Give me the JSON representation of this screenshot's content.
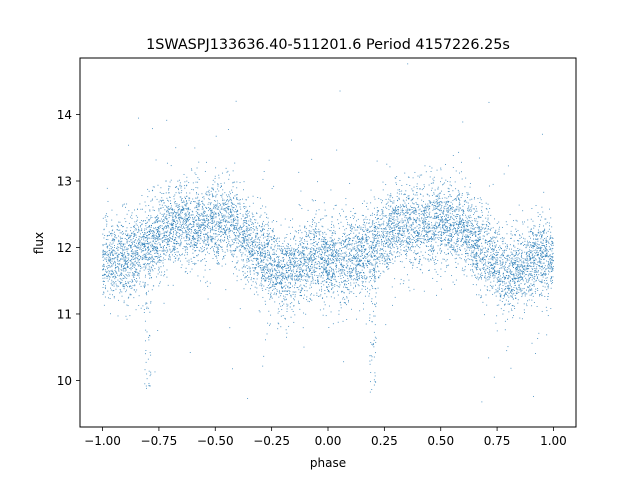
{
  "chart_data": {
    "type": "scatter",
    "title": "1SWASPJ133636.40-511201.6 Period 4157226.25s",
    "xlabel": "phase",
    "ylabel": "flux",
    "xlim": [
      -1.1,
      1.1
    ],
    "ylim": [
      9.3,
      14.85
    ],
    "x_ticks": [
      -1.0,
      -0.75,
      -0.5,
      -0.25,
      0.0,
      0.25,
      0.5,
      0.75,
      1.0
    ],
    "x_tick_labels": [
      "−1.00",
      "−0.75",
      "−0.50",
      "−0.25",
      "0.00",
      "0.25",
      "0.50",
      "0.75",
      "1.00"
    ],
    "y_ticks": [
      10,
      11,
      12,
      13,
      14
    ],
    "y_tick_labels": [
      "10",
      "11",
      "12",
      "13",
      "14"
    ],
    "grid": false,
    "legend": "none",
    "marker_color": "#1f77b4",
    "phase_profile": {
      "phase": [
        0.0,
        0.05,
        0.1,
        0.15,
        0.2,
        0.25,
        0.3,
        0.35,
        0.4,
        0.45,
        0.5,
        0.55,
        0.6,
        0.65,
        0.7,
        0.75,
        0.8,
        0.85,
        0.9,
        0.95,
        1.0
      ],
      "median_flux": [
        11.8,
        11.8,
        11.85,
        11.9,
        12.0,
        12.15,
        12.3,
        12.35,
        12.3,
        12.35,
        12.4,
        12.35,
        12.3,
        12.1,
        11.9,
        11.7,
        11.6,
        11.7,
        11.8,
        11.9,
        11.8
      ],
      "spread": 0.35
    },
    "outlier_dips": [
      {
        "phase": 0.2,
        "flux_min": 9.8
      },
      {
        "phase": -0.8,
        "flux_min": 9.8
      }
    ],
    "approx_point_count": 9000
  }
}
